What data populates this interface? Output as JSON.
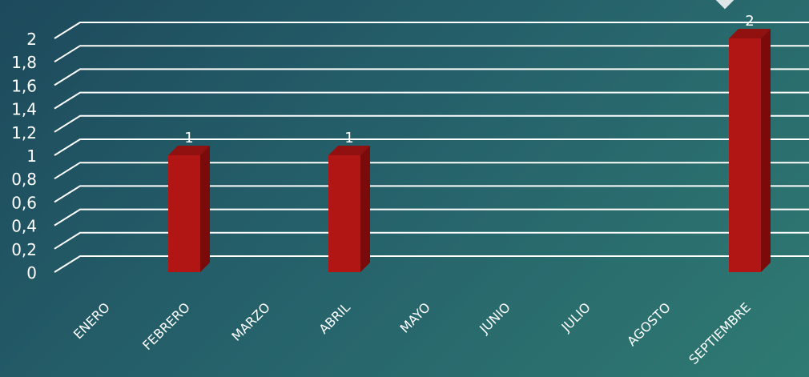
{
  "chart_data": {
    "type": "bar",
    "categories": [
      "ENERO",
      "FEBRERO",
      "MARZO",
      "ABRIL",
      "MAYO",
      "JUNIO",
      "JULIO",
      "AGOSTO",
      "SEPTIEMBRE"
    ],
    "values": [
      0,
      1,
      0,
      1,
      0,
      0,
      0,
      0,
      2
    ],
    "data_labels": [
      "",
      "1",
      "",
      "1",
      "",
      "",
      "",
      "",
      "2"
    ],
    "y_ticks": [
      "0",
      "0,2",
      "0,4",
      "0,6",
      "0,8",
      "1",
      "1,2",
      "1,4",
      "1,6",
      "1,8",
      "2"
    ],
    "ylim": [
      0,
      2
    ],
    "grid": true,
    "legend": "none",
    "style": "3d",
    "colors": {
      "bar_front": "#b11514",
      "bar_side": "#7a0b0a",
      "bar_top": "#901110",
      "grid": "#ffffff",
      "text": "#ffffff"
    }
  }
}
